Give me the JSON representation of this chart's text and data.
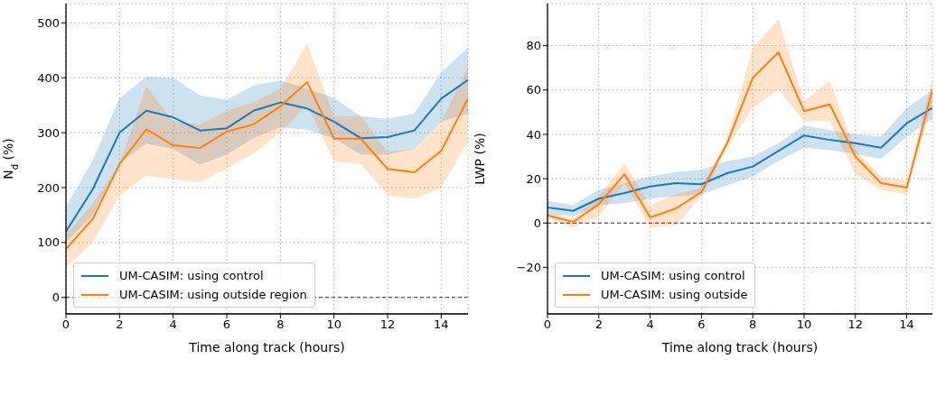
{
  "chart_data": [
    {
      "type": "line",
      "xlabel": "Time along track (hours)",
      "ylabel": "N$_{d}$ (%)",
      "x": [
        0,
        1,
        2,
        3,
        4,
        5,
        6,
        7,
        8,
        9,
        10,
        11,
        12,
        13,
        14,
        15
      ],
      "xlim": [
        0,
        15
      ],
      "xticks": [
        0,
        2,
        4,
        6,
        8,
        10,
        12,
        14
      ],
      "ylim": [
        -30,
        535
      ],
      "yticks": [
        0,
        100,
        200,
        300,
        400,
        500
      ],
      "grid": true,
      "legend": "bottom left",
      "marker": "none",
      "line_style": "solid",
      "ref_lines": [
        {
          "axis": "y",
          "value": 0,
          "color": "#000000",
          "line_style": "dashed"
        }
      ],
      "series": [
        {
          "name": "UM-CASIM: using control",
          "color": "#1f77b4",
          "values": [
            120,
            197,
            300,
            340,
            328,
            304,
            308,
            340,
            355,
            344,
            320,
            290,
            292,
            304,
            362,
            396
          ],
          "lower": [
            100,
            150,
            245,
            280,
            270,
            242,
            260,
            290,
            310,
            305,
            290,
            260,
            260,
            270,
            320,
            335
          ],
          "upper": [
            165,
            250,
            363,
            402,
            400,
            368,
            360,
            386,
            395,
            380,
            363,
            330,
            325,
            335,
            410,
            455
          ]
        },
        {
          "name": "UM-CASIM: using outside region",
          "color": "#ff7f0e",
          "values": [
            88,
            143,
            243,
            306,
            277,
            272,
            302,
            315,
            348,
            392,
            289,
            289,
            234,
            228,
            267,
            362
          ],
          "lower": [
            55,
            100,
            185,
            222,
            215,
            210,
            235,
            262,
            300,
            350,
            248,
            243,
            186,
            180,
            200,
            285
          ],
          "upper": [
            115,
            170,
            243,
            385,
            320,
            315,
            340,
            355,
            380,
            462,
            330,
            330,
            265,
            270,
            320,
            420
          ]
        }
      ]
    },
    {
      "type": "line",
      "xlabel": "Time along track (hours)",
      "ylabel": "LWP (%)",
      "x": [
        0,
        1,
        2,
        3,
        4,
        5,
        6,
        7,
        8,
        9,
        10,
        11,
        12,
        13,
        14,
        15
      ],
      "xlim": [
        0,
        15
      ],
      "xticks": [
        0,
        2,
        4,
        6,
        8,
        10,
        12,
        14
      ],
      "ylim": [
        -41,
        99
      ],
      "yticks": [
        -20,
        0,
        20,
        40,
        60,
        80
      ],
      "grid": true,
      "legend": "bottom left",
      "marker": "none",
      "line_style": "solid",
      "ref_lines": [
        {
          "axis": "y",
          "value": 0,
          "color": "#000000",
          "line_style": "dashed"
        }
      ],
      "series": [
        {
          "name": "UM-CASIM: using control",
          "color": "#1f77b4",
          "values": [
            7,
            5.5,
            11,
            13.5,
            16.5,
            18,
            17.5,
            22.5,
            25.5,
            32.5,
            39.5,
            37.5,
            36,
            34,
            45,
            52
          ],
          "lower": [
            4,
            3,
            8,
            9,
            11,
            12,
            13,
            17,
            21,
            28,
            34,
            33,
            31,
            29,
            39,
            47
          ],
          "upper": [
            10,
            8,
            15,
            18,
            21,
            23,
            24,
            28,
            30,
            36,
            44,
            42,
            40,
            39,
            52,
            60
          ]
        },
        {
          "name": "UM-CASIM: using outside",
          "color": "#ff7f0e",
          "values": [
            3.5,
            0.5,
            8.5,
            22,
            2.5,
            6.5,
            14,
            36,
            65.5,
            77,
            50.5,
            53.5,
            30,
            18,
            16,
            60
          ],
          "lower": [
            2,
            -2,
            3,
            18,
            -2,
            -1,
            12,
            34,
            52,
            60,
            46,
            46,
            22,
            15,
            13,
            55
          ],
          "upper": [
            4.5,
            2,
            12,
            27,
            8,
            13,
            16,
            38,
            79,
            92,
            55,
            64,
            33,
            21,
            19,
            65
          ]
        }
      ]
    }
  ]
}
